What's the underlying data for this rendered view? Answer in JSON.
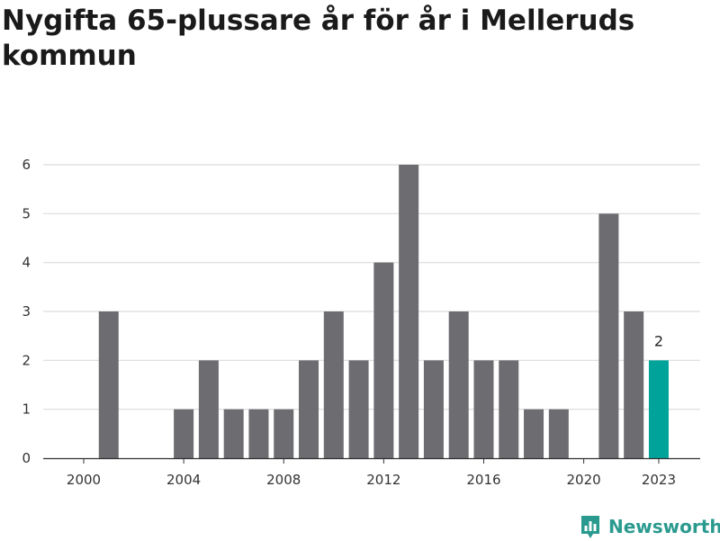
{
  "title": "Nygifta 65-plussare år för år i Melleruds kommun",
  "brand": {
    "name": "Newsworthy",
    "icon": "bar-chart-logo-icon"
  },
  "colors": {
    "bar": "#6d6c70",
    "highlight": "#00a39a",
    "grid": "#dcdcdc",
    "axis": "#333333"
  },
  "chart_data": {
    "type": "bar",
    "title": "Nygifta 65-plussare år för år i Melleruds kommun",
    "xlabel": "",
    "ylabel": "",
    "x": [
      2000,
      2001,
      2002,
      2003,
      2004,
      2005,
      2006,
      2007,
      2008,
      2009,
      2010,
      2011,
      2012,
      2013,
      2014,
      2015,
      2016,
      2017,
      2018,
      2019,
      2020,
      2021,
      2022,
      2023
    ],
    "values": [
      0,
      3,
      0,
      0,
      1,
      2,
      1,
      1,
      1,
      2,
      3,
      2,
      4,
      6,
      2,
      3,
      2,
      2,
      1,
      1,
      0,
      5,
      3,
      2
    ],
    "highlight": {
      "x": 2023,
      "label": "2"
    },
    "x_ticks": [
      "2000",
      "2004",
      "2008",
      "2012",
      "2016",
      "2020",
      "2023"
    ],
    "y_ticks": [
      "0",
      "1",
      "2",
      "3",
      "4",
      "5",
      "6"
    ],
    "ylim": [
      0,
      6
    ],
    "grid": true,
    "legend": "none"
  }
}
